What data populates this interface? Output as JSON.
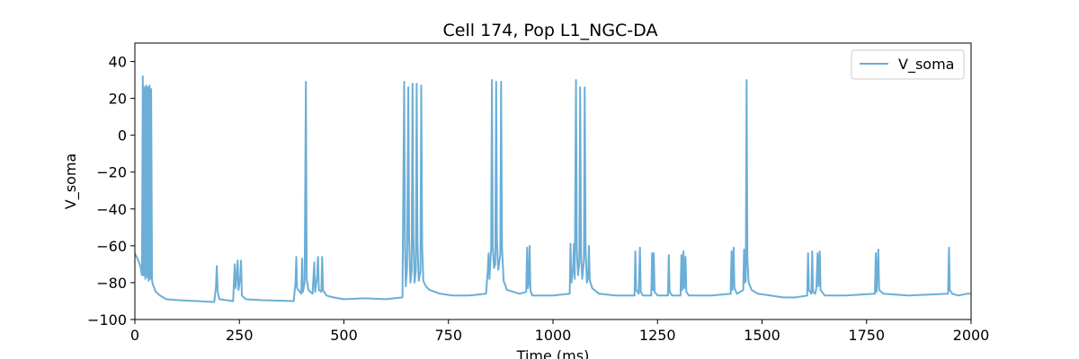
{
  "chart_data": {
    "type": "line",
    "title": "Cell 174, Pop L1_NGC-DA",
    "xlabel": "Time (ms)",
    "ylabel": "V_soma",
    "xlim": [
      0,
      2000
    ],
    "ylim": [
      -100,
      50
    ],
    "xticks": [
      0,
      250,
      500,
      750,
      1000,
      1250,
      1500,
      1750,
      2000
    ],
    "yticks": [
      -100,
      -80,
      -60,
      -40,
      -20,
      0,
      20,
      40
    ],
    "grid": false,
    "legend": {
      "position": "top-right",
      "entries": [
        "V_soma"
      ]
    },
    "series": [
      {
        "name": "V_soma",
        "color": "#6baed6",
        "points": [
          [
            0,
            -64
          ],
          [
            6,
            -67
          ],
          [
            10,
            -69
          ],
          [
            14,
            -72
          ],
          [
            17,
            -76
          ],
          [
            19,
            32
          ],
          [
            21,
            -76
          ],
          [
            23,
            26
          ],
          [
            25,
            -78
          ],
          [
            27,
            27
          ],
          [
            29,
            -77
          ],
          [
            31,
            26
          ],
          [
            33,
            -79
          ],
          [
            35,
            27
          ],
          [
            37,
            -78
          ],
          [
            39,
            25
          ],
          [
            41,
            -79
          ],
          [
            43,
            -81
          ],
          [
            50,
            -85
          ],
          [
            60,
            -87
          ],
          [
            75,
            -89
          ],
          [
            100,
            -89.5
          ],
          [
            150,
            -90
          ],
          [
            190,
            -90.5
          ],
          [
            194,
            -82
          ],
          [
            196,
            -71
          ],
          [
            198,
            -85
          ],
          [
            202,
            -89
          ],
          [
            235,
            -90
          ],
          [
            237,
            -79
          ],
          [
            239,
            -70
          ],
          [
            241,
            -83
          ],
          [
            244,
            -75
          ],
          [
            246,
            -68
          ],
          [
            248,
            -84
          ],
          [
            252,
            -77
          ],
          [
            254,
            -68
          ],
          [
            256,
            -87
          ],
          [
            265,
            -89
          ],
          [
            300,
            -89.5
          ],
          [
            380,
            -90
          ],
          [
            384,
            -80
          ],
          [
            386,
            -66
          ],
          [
            388,
            -83
          ],
          [
            398,
            -86
          ],
          [
            400,
            -67
          ],
          [
            402,
            -85
          ],
          [
            406,
            -80
          ],
          [
            409,
            29
          ],
          [
            411,
            -78
          ],
          [
            415,
            -84
          ],
          [
            425,
            -86
          ],
          [
            429,
            -69
          ],
          [
            431,
            -85
          ],
          [
            436,
            -77
          ],
          [
            438,
            -66
          ],
          [
            440,
            -84
          ],
          [
            446,
            -85
          ],
          [
            448,
            -66
          ],
          [
            450,
            -84
          ],
          [
            458,
            -87
          ],
          [
            475,
            -88
          ],
          [
            500,
            -89
          ],
          [
            550,
            -88.5
          ],
          [
            600,
            -89
          ],
          [
            640,
            -88
          ],
          [
            644,
            29
          ],
          [
            646,
            -60
          ],
          [
            648,
            -82
          ],
          [
            651,
            -72
          ],
          [
            654,
            26
          ],
          [
            656,
            -56
          ],
          [
            659,
            -80
          ],
          [
            662,
            -74
          ],
          [
            664,
            28
          ],
          [
            666,
            -55
          ],
          [
            669,
            -80
          ],
          [
            672,
            -73
          ],
          [
            674,
            28
          ],
          [
            676,
            -58
          ],
          [
            679,
            -79
          ],
          [
            683,
            -74
          ],
          [
            685,
            27
          ],
          [
            687,
            -60
          ],
          [
            690,
            -79
          ],
          [
            696,
            -82
          ],
          [
            705,
            -84
          ],
          [
            730,
            -86
          ],
          [
            760,
            -87
          ],
          [
            800,
            -87
          ],
          [
            840,
            -86
          ],
          [
            844,
            -73
          ],
          [
            846,
            -64
          ],
          [
            848,
            -78
          ],
          [
            852,
            -62
          ],
          [
            854,
            30
          ],
          [
            856,
            -60
          ],
          [
            859,
            -72
          ],
          [
            862,
            -70
          ],
          [
            864,
            29
          ],
          [
            866,
            -58
          ],
          [
            869,
            -73
          ],
          [
            874,
            -65
          ],
          [
            876,
            29
          ],
          [
            878,
            -61
          ],
          [
            882,
            -79
          ],
          [
            890,
            -84
          ],
          [
            920,
            -86
          ],
          [
            936,
            -85
          ],
          [
            938,
            -61
          ],
          [
            940,
            -83
          ],
          [
            942,
            -80
          ],
          [
            944,
            -60
          ],
          [
            946,
            -84
          ],
          [
            950,
            -87
          ],
          [
            1000,
            -87
          ],
          [
            1040,
            -86
          ],
          [
            1042,
            -59
          ],
          [
            1044,
            -80
          ],
          [
            1048,
            -73
          ],
          [
            1050,
            -59
          ],
          [
            1052,
            -78
          ],
          [
            1055,
            30
          ],
          [
            1057,
            -62
          ],
          [
            1060,
            -76
          ],
          [
            1063,
            -69
          ],
          [
            1065,
            26
          ],
          [
            1067,
            -64
          ],
          [
            1070,
            -78
          ],
          [
            1074,
            -68
          ],
          [
            1076,
            26
          ],
          [
            1078,
            -62
          ],
          [
            1081,
            -80
          ],
          [
            1084,
            -77
          ],
          [
            1086,
            -60
          ],
          [
            1088,
            -79
          ],
          [
            1094,
            -83
          ],
          [
            1110,
            -86
          ],
          [
            1150,
            -87
          ],
          [
            1195,
            -87
          ],
          [
            1197,
            -63
          ],
          [
            1199,
            -84
          ],
          [
            1205,
            -86
          ],
          [
            1208,
            -61
          ],
          [
            1210,
            -85
          ],
          [
            1215,
            -87
          ],
          [
            1235,
            -87
          ],
          [
            1237,
            -64
          ],
          [
            1239,
            -84
          ],
          [
            1241,
            -64
          ],
          [
            1243,
            -85
          ],
          [
            1250,
            -87
          ],
          [
            1275,
            -87
          ],
          [
            1277,
            -65
          ],
          [
            1279,
            -85
          ],
          [
            1285,
            -87
          ],
          [
            1305,
            -87
          ],
          [
            1307,
            -65
          ],
          [
            1309,
            -84
          ],
          [
            1312,
            -63
          ],
          [
            1314,
            -83
          ],
          [
            1317,
            -66
          ],
          [
            1319,
            -85
          ],
          [
            1325,
            -87
          ],
          [
            1340,
            -87
          ],
          [
            1380,
            -87
          ],
          [
            1425,
            -86
          ],
          [
            1427,
            -63
          ],
          [
            1429,
            -84
          ],
          [
            1432,
            -61
          ],
          [
            1434,
            -83
          ],
          [
            1440,
            -86
          ],
          [
            1455,
            -84
          ],
          [
            1457,
            -62
          ],
          [
            1459,
            -80
          ],
          [
            1461,
            -79
          ],
          [
            1463,
            30
          ],
          [
            1465,
            -67
          ],
          [
            1468,
            -80
          ],
          [
            1475,
            -84
          ],
          [
            1490,
            -86
          ],
          [
            1520,
            -87
          ],
          [
            1550,
            -88
          ],
          [
            1580,
            -88
          ],
          [
            1608,
            -87
          ],
          [
            1610,
            -64
          ],
          [
            1612,
            -84
          ],
          [
            1618,
            -86
          ],
          [
            1620,
            -63
          ],
          [
            1622,
            -85
          ],
          [
            1627,
            -86
          ],
          [
            1630,
            -83
          ],
          [
            1633,
            -64
          ],
          [
            1635,
            -82
          ],
          [
            1638,
            -63
          ],
          [
            1640,
            -84
          ],
          [
            1650,
            -87
          ],
          [
            1700,
            -87
          ],
          [
            1770,
            -86
          ],
          [
            1772,
            -64
          ],
          [
            1774,
            -85
          ],
          [
            1778,
            -62
          ],
          [
            1780,
            -84
          ],
          [
            1790,
            -86
          ],
          [
            1850,
            -87
          ],
          [
            1945,
            -86
          ],
          [
            1947,
            -61
          ],
          [
            1949,
            -84
          ],
          [
            1955,
            -86
          ],
          [
            1970,
            -87
          ],
          [
            1990,
            -86
          ],
          [
            2000,
            -86
          ]
        ]
      }
    ]
  }
}
